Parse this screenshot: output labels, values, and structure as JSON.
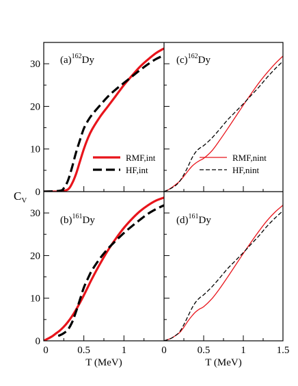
{
  "chart_data": [
    {
      "id": "a",
      "type": "line",
      "panel_label": "(a)",
      "mass_number": "162",
      "element": "Dy",
      "xlim": [
        0,
        1.5
      ],
      "ylim": [
        0,
        35
      ],
      "legend_placement": "lower-right",
      "series": [
        {
          "name": "RMF,int",
          "color": "#e8141b",
          "style": "solid",
          "width": 3.2,
          "x": [
            0,
            0.2,
            0.3,
            0.35,
            0.4,
            0.45,
            0.5,
            0.55,
            0.6,
            0.7,
            0.8,
            0.9,
            1.0,
            1.1,
            1.2,
            1.3,
            1.4,
            1.5
          ],
          "y": [
            0,
            0.05,
            0.5,
            1.8,
            4.0,
            7.0,
            10.0,
            12.5,
            14.5,
            17.5,
            20.0,
            22.5,
            25.0,
            27.2,
            29.3,
            31.0,
            32.5,
            33.6
          ]
        },
        {
          "name": "HF,int",
          "color": "#000000",
          "style": "dashed",
          "width": 3.2,
          "x": [
            0,
            0.2,
            0.25,
            0.3,
            0.35,
            0.4,
            0.45,
            0.5,
            0.55,
            0.6,
            0.7,
            0.8,
            0.9,
            1.0,
            1.1,
            1.2,
            1.3,
            1.4,
            1.5
          ],
          "y": [
            0,
            0.2,
            0.8,
            2.5,
            5.5,
            9.0,
            12.0,
            14.8,
            16.6,
            18.0,
            20.2,
            22.3,
            24.0,
            25.5,
            27.0,
            28.5,
            29.9,
            31.1,
            32.0
          ]
        }
      ]
    },
    {
      "id": "c",
      "type": "line",
      "panel_label": "(c)",
      "mass_number": "162",
      "element": "Dy",
      "xlim": [
        0,
        1.5
      ],
      "ylim": [
        0,
        35
      ],
      "legend_placement": "lower-right",
      "series": [
        {
          "name": "RMF,nint",
          "color": "#e8141b",
          "style": "solid",
          "width": 1.3,
          "x": [
            0,
            0.05,
            0.1,
            0.15,
            0.2,
            0.25,
            0.3,
            0.35,
            0.4,
            0.45,
            0.5,
            0.6,
            0.7,
            0.8,
            0.9,
            1.0,
            1.1,
            1.2,
            1.3,
            1.4,
            1.5
          ],
          "y": [
            0,
            0.4,
            1.0,
            1.7,
            2.5,
            3.6,
            4.8,
            5.9,
            6.7,
            7.3,
            7.8,
            9.5,
            12.0,
            14.7,
            17.5,
            20.3,
            23.0,
            25.6,
            27.9,
            30.0,
            31.8
          ]
        },
        {
          "name": "HF,nint",
          "color": "#000000",
          "style": "dashed",
          "width": 1.3,
          "x": [
            0,
            0.05,
            0.1,
            0.15,
            0.2,
            0.25,
            0.3,
            0.35,
            0.4,
            0.45,
            0.5,
            0.6,
            0.7,
            0.8,
            0.9,
            1.0,
            1.1,
            1.2,
            1.3,
            1.4,
            1.5
          ],
          "y": [
            0,
            0.4,
            0.9,
            1.5,
            2.5,
            4.0,
            5.8,
            7.8,
            9.3,
            10.2,
            10.8,
            12.5,
            14.6,
            16.8,
            18.7,
            20.6,
            22.6,
            24.6,
            26.8,
            28.8,
            30.6
          ]
        }
      ]
    },
    {
      "id": "b",
      "type": "line",
      "panel_label": "(b)",
      "mass_number": "161",
      "element": "Dy",
      "xlim": [
        0,
        1.5
      ],
      "ylim": [
        0,
        35
      ],
      "series": [
        {
          "name": "RMF,int",
          "color": "#e8141b",
          "style": "solid",
          "width": 3.2,
          "x": [
            0,
            0.05,
            0.1,
            0.15,
            0.2,
            0.25,
            0.3,
            0.35,
            0.4,
            0.45,
            0.5,
            0.55,
            0.6,
            0.7,
            0.8,
            0.9,
            1.0,
            1.1,
            1.2,
            1.3,
            1.4,
            1.5
          ],
          "y": [
            0,
            0.5,
            1.0,
            1.7,
            2.4,
            3.3,
            4.4,
            5.7,
            7.2,
            8.9,
            10.7,
            12.6,
            14.5,
            18.0,
            21.2,
            24.0,
            26.5,
            28.6,
            30.4,
            31.8,
            32.9,
            33.6
          ]
        },
        {
          "name": "HF,int",
          "color": "#000000",
          "style": "dashed",
          "width": 3.2,
          "x": [
            0.18,
            0.2,
            0.25,
            0.3,
            0.35,
            0.4,
            0.45,
            0.5,
            0.55,
            0.6,
            0.7,
            0.8,
            0.9,
            1.0,
            1.1,
            1.2,
            1.3,
            1.4,
            1.5
          ],
          "y": [
            1.2,
            1.3,
            1.8,
            2.6,
            4.2,
            6.7,
            9.6,
            12.5,
            14.6,
            16.5,
            19.3,
            21.6,
            23.5,
            25.3,
            26.9,
            28.4,
            29.8,
            30.9,
            31.8
          ]
        }
      ]
    },
    {
      "id": "d",
      "type": "line",
      "panel_label": "(d)",
      "mass_number": "161",
      "element": "Dy",
      "xlim": [
        0,
        1.5
      ],
      "ylim": [
        0,
        35
      ],
      "series": [
        {
          "name": "RMF,nint",
          "color": "#e8141b",
          "style": "solid",
          "width": 1.3,
          "x": [
            0,
            0.05,
            0.1,
            0.15,
            0.2,
            0.25,
            0.3,
            0.35,
            0.4,
            0.45,
            0.5,
            0.6,
            0.7,
            0.8,
            0.9,
            1.0,
            1.1,
            1.2,
            1.3,
            1.4,
            1.5
          ],
          "y": [
            0,
            0.3,
            0.7,
            1.3,
            2.0,
            3.2,
            4.6,
            5.8,
            6.8,
            7.5,
            8.0,
            9.8,
            12.2,
            14.9,
            17.7,
            20.5,
            23.2,
            25.8,
            28.2,
            30.2,
            31.8
          ]
        },
        {
          "name": "HF,nint",
          "color": "#000000",
          "style": "dashed",
          "width": 1.3,
          "x": [
            0,
            0.05,
            0.1,
            0.15,
            0.2,
            0.25,
            0.3,
            0.35,
            0.4,
            0.45,
            0.5,
            0.6,
            0.7,
            0.8,
            0.9,
            1.0,
            1.1,
            1.2,
            1.3,
            1.4,
            1.5
          ],
          "y": [
            0,
            0.3,
            0.7,
            1.3,
            2.2,
            3.8,
            5.7,
            7.6,
            9.1,
            10.1,
            10.8,
            12.6,
            14.7,
            16.9,
            18.8,
            20.7,
            22.7,
            24.7,
            26.9,
            28.8,
            30.5
          ]
        }
      ]
    }
  ],
  "axes": {
    "ylabel_main": "C",
    "ylabel_sub": "V",
    "xlabel": "T (MeV)",
    "y_ticks": [
      "0",
      "10",
      "20",
      "30"
    ],
    "x_ticks_left": [
      "0",
      "0.5",
      "1"
    ],
    "x_ticks_right": [
      "0",
      "0.5",
      "1",
      "1.5"
    ]
  }
}
